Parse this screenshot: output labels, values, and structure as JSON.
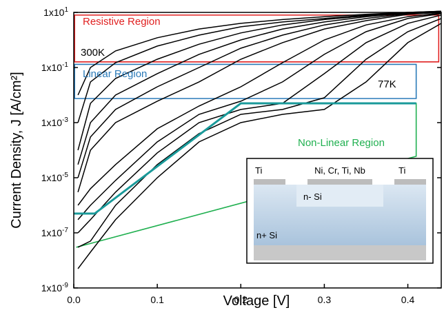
{
  "chart_data": {
    "type": "line",
    "x_label": "Voltage [V]",
    "y_label": "Current Density, J [A/cm²]",
    "log_y": true,
    "xlim": [
      0,
      0.44
    ],
    "ylim": [
      1e-09,
      10
    ],
    "xticks": [
      {
        "value": 0,
        "label": "0.0"
      },
      0.1,
      0.2,
      0.3,
      0.4
    ],
    "yticks": [
      {
        "value": 1e-09,
        "label": "1x10",
        "exponent": "-9"
      },
      {
        "value": 1e-07,
        "label": "1x10",
        "exponent": "-7"
      },
      {
        "value": 1e-05,
        "label": "1x10",
        "exponent": "-5"
      },
      {
        "value": 0.001,
        "label": "1x10",
        "exponent": "-3"
      },
      {
        "value": 0.1,
        "label": "1x10",
        "exponent": "-1"
      },
      {
        "value": 10,
        "label": "1x10",
        "exponent": "1"
      }
    ],
    "x": [
      0.005,
      0.02,
      0.05,
      0.1,
      0.15,
      0.2,
      0.25,
      0.3,
      0.35,
      0.4,
      0.44
    ],
    "series": [
      {
        "color": "#000000",
        "values": [
          0.01,
          0.1,
          0.4,
          1.2,
          2.5,
          4,
          5.5,
          7,
          8.5,
          10,
          11
        ]
      },
      {
        "color": "#000000",
        "values": [
          0.001,
          0.03,
          0.15,
          0.6,
          1.5,
          3,
          4.5,
          6,
          8,
          10,
          11
        ]
      },
      {
        "color": "#000000",
        "values": [
          0.0001,
          0.005,
          0.04,
          0.2,
          0.7,
          1.8,
          3.5,
          5.5,
          7.5,
          9.5,
          11
        ]
      },
      {
        "color": "#000000",
        "values": [
          3e-05,
          0.001,
          0.01,
          0.06,
          0.3,
          1,
          2.5,
          4.5,
          7,
          9.5,
          11
        ]
      },
      {
        "color": "#000000",
        "values": [
          1e-05,
          0.0003,
          0.003,
          0.02,
          0.1,
          0.5,
          1.5,
          3.5,
          6,
          9,
          10.5
        ]
      },
      {
        "color": "#000000",
        "values": [
          3e-06,
          0.0001,
          0.001,
          0.006,
          0.03,
          0.2,
          0.8,
          2.5,
          5,
          8.5,
          10
        ]
      },
      {
        "color": "#000000",
        "values": [
          1e-06,
          4e-06,
          3e-05,
          0.0006,
          0.004,
          0.02,
          0.15,
          1,
          3.5,
          7,
          9.5
        ]
      },
      {
        "color": "#000000",
        "values": [
          3e-07,
          1e-06,
          8e-06,
          0.0002,
          0.002,
          0.006,
          0.03,
          0.3,
          2,
          6,
          9
        ]
      },
      {
        "color": "#000000",
        "values": [
          1e-07,
          3e-07,
          3e-06,
          8e-05,
          0.001,
          0.003,
          0.005,
          0.06,
          0.8,
          4,
          8
        ]
      },
      {
        "color": "#000000",
        "values": [
          3e-08,
          5e-08,
          1e-06,
          3e-05,
          0.0004,
          0.002,
          0.003,
          0.008,
          0.2,
          2,
          6
        ]
      },
      {
        "color": "#000000",
        "values": [
          5e-09,
          2e-08,
          3e-07,
          1e-05,
          0.0002,
          0.001,
          0.002,
          0.003,
          0.03,
          0.8,
          4
        ]
      }
    ],
    "fit_line": {
      "color": "#1a9a9a",
      "x": [
        0,
        0.025,
        0.2,
        0.41
      ],
      "y": [
        5e-07,
        5e-07,
        0.005,
        0.005
      ]
    },
    "regions": [
      {
        "label": "Resistive Region",
        "color": "#e02020",
        "x": [
          0.001,
          0.437
        ],
        "y": [
          0.16,
          8
        ]
      },
      {
        "label": "Linear Region",
        "color": "#2a7ab8",
        "x": [
          0.001,
          0.41
        ],
        "y": [
          0.0075,
          0.13
        ]
      },
      {
        "label": "Non-Linear Region",
        "color": "#20b050",
        "x": [
          0.003,
          0.41,
          0.41,
          0.2
        ],
        "y": [
          3e-08,
          6e-05,
          0.005,
          0.005
        ]
      }
    ],
    "annotations": [
      "300K",
      "77K"
    ],
    "inset": {
      "top_metal": "Ni, Cr, Ti, Nb",
      "mesa": "n- Si",
      "left_contact": "Ti",
      "right_contact": "Ti",
      "substrate": "n+ Si"
    }
  }
}
